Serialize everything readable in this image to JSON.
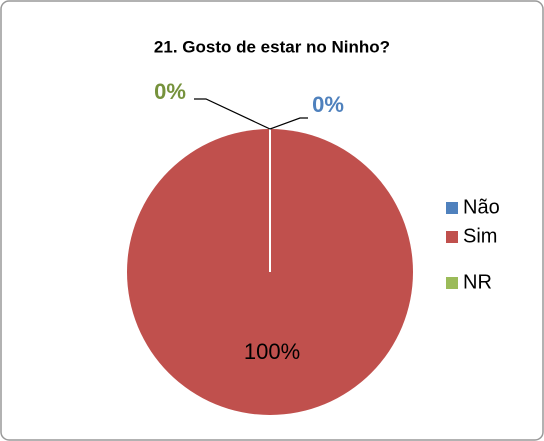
{
  "chart_data": {
    "type": "pie",
    "title": "21. Gosto de estar no Ninho?",
    "categories": [
      "Não",
      "Sim",
      "NR"
    ],
    "values": [
      0,
      100,
      0
    ],
    "value_labels": [
      "0%",
      "100%",
      "0%"
    ],
    "colors": [
      "#4f81bd",
      "#c0504d",
      "#9bbb59"
    ],
    "legend": "right"
  }
}
